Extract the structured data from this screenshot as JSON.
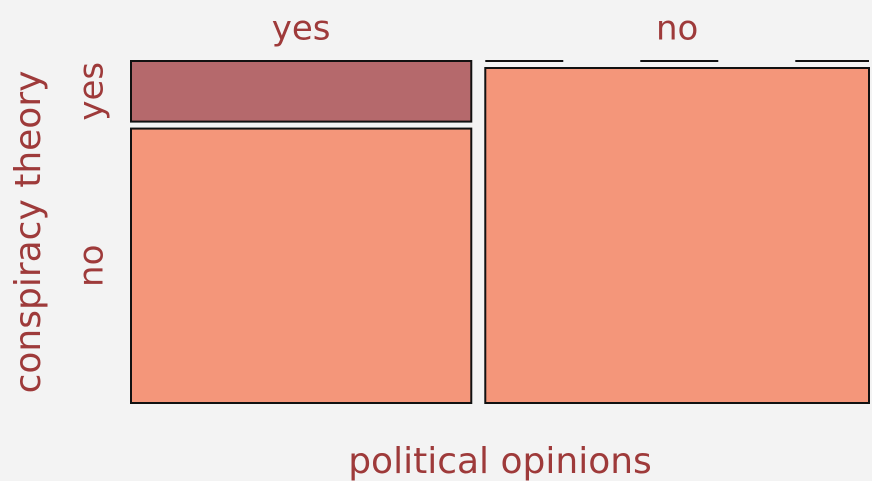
{
  "chart_data": {
    "type": "mosaic",
    "x_label": "political opinions",
    "y_label": "conspiracy theory",
    "categories": [
      "yes",
      "no"
    ],
    "series": [
      {
        "name": "yes",
        "color": "#b5696c",
        "values": [
          8.5,
          0
        ]
      },
      {
        "name": "no",
        "color": "#f4967a",
        "values": [
          38.5,
          53
        ]
      }
    ]
  }
}
